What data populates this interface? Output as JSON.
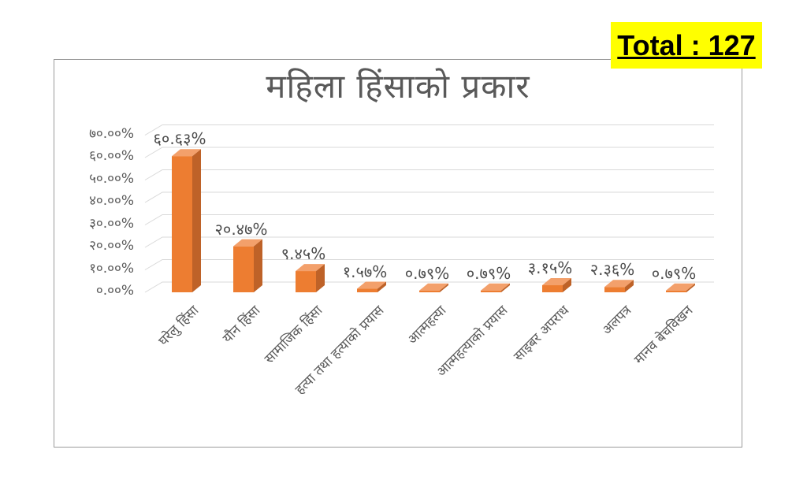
{
  "page": {
    "background": "#FFFFFF"
  },
  "total_badge": {
    "label": "Total : 127",
    "background": "#FFFF00",
    "text_color": "#000000"
  },
  "chart_data": {
    "type": "bar",
    "variant": "3d-column",
    "title": "महिला हिंसाको प्रकार",
    "categories": [
      "घरेलु हिंसा",
      "यौन हिंसा",
      "सामाजिक हिंसा",
      "हत्या तथा हत्याको प्रयास",
      "आत्महत्या",
      "आत्महत्याको प्रयास",
      "साइबर अपराध",
      "अलपत्र",
      "मानव बेचविखन"
    ],
    "values": [
      60.63,
      20.47,
      9.45,
      1.57,
      0.79,
      0.79,
      3.15,
      2.36,
      0.79
    ],
    "value_labels": [
      "६०.६३%",
      "२०.४७%",
      "९.४५%",
      "१.५७%",
      "०.७९%",
      "०.७९%",
      "३.१५%",
      "२.३६%",
      "०.७९%"
    ],
    "y_ticks": [
      0,
      10,
      20,
      30,
      40,
      50,
      60,
      70
    ],
    "y_tick_labels": [
      "०.००%",
      "१०.००%",
      "२०.००%",
      "३०.००%",
      "४०.००%",
      "५०.००%",
      "६०.००%",
      "७०.००%"
    ],
    "ylim": [
      0,
      70
    ],
    "xlabel": "",
    "ylabel": "",
    "legend": "none",
    "grid": true,
    "colors": {
      "bar_front": "#ED7D31",
      "bar_top": "#F3A06B",
      "bar_side": "#BE6228",
      "gridline": "#D9D9D9",
      "axis_text": "#595959",
      "title_text": "#595959",
      "frame_border": "#A6A6A6",
      "badge_background": "#FFFF00"
    }
  }
}
